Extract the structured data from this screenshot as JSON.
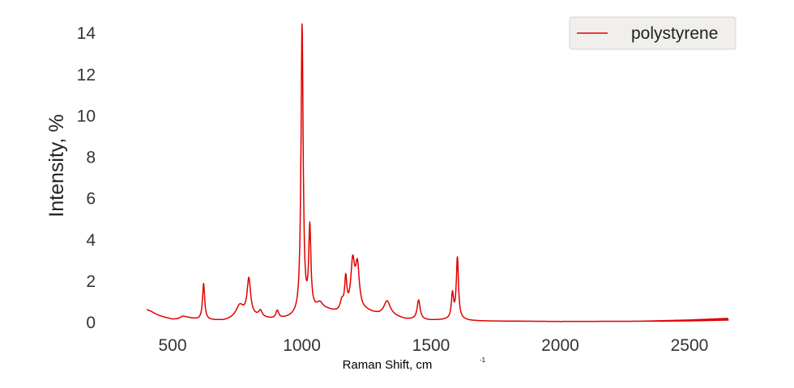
{
  "chart_data": {
    "type": "line",
    "title": "",
    "xlabel": "Raman Shift, cm",
    "xlabel_superscript": "-1",
    "ylabel": "Intensity, %",
    "xlim": [
      340,
      2660
    ],
    "ylim": [
      0,
      14.4
    ],
    "xticks": [
      500,
      1000,
      1500,
      2000,
      2500
    ],
    "yticks": [
      0,
      2,
      4,
      6,
      8,
      10,
      12,
      14
    ],
    "grid": false,
    "legend_position": "top-right",
    "series": [
      {
        "name": "polystyrene",
        "color": "#e00000",
        "peaks": [
          {
            "x": 620,
            "y": 1.75,
            "w": 5
          },
          {
            "x": 760,
            "y": 0.6,
            "w": 18
          },
          {
            "x": 795,
            "y": 1.75,
            "w": 8
          },
          {
            "x": 840,
            "y": 0.3,
            "w": 8
          },
          {
            "x": 905,
            "y": 0.4,
            "w": 7
          },
          {
            "x": 1001,
            "y": 14.0,
            "w": 5
          },
          {
            "x": 1031,
            "y": 4.0,
            "w": 5
          },
          {
            "x": 1070,
            "y": 0.35,
            "w": 15
          },
          {
            "x": 1155,
            "y": 0.5,
            "w": 8
          },
          {
            "x": 1170,
            "y": 1.5,
            "w": 5
          },
          {
            "x": 1197,
            "y": 2.3,
            "w": 9
          },
          {
            "x": 1215,
            "y": 2.1,
            "w": 9
          },
          {
            "x": 1330,
            "y": 0.7,
            "w": 15
          },
          {
            "x": 1452,
            "y": 0.95,
            "w": 7
          },
          {
            "x": 1583,
            "y": 1.2,
            "w": 5
          },
          {
            "x": 1602,
            "y": 2.95,
            "w": 5
          }
        ],
        "baseline": [
          [
            400,
            0.62
          ],
          [
            415,
            0.55
          ],
          [
            440,
            0.38
          ],
          [
            470,
            0.25
          ],
          [
            500,
            0.16
          ],
          [
            520,
            0.18
          ],
          [
            540,
            0.3
          ],
          [
            560,
            0.24
          ],
          [
            580,
            0.18
          ],
          [
            600,
            0.14
          ],
          [
            650,
            0.1
          ],
          [
            700,
            0.08
          ],
          [
            750,
            0.18
          ],
          [
            800,
            0.3
          ],
          [
            850,
            0.2
          ],
          [
            900,
            0.12
          ],
          [
            950,
            0.2
          ],
          [
            1000,
            0.3
          ],
          [
            1050,
            0.5
          ],
          [
            1100,
            0.55
          ],
          [
            1150,
            0.4
          ],
          [
            1250,
            0.5
          ],
          [
            1300,
            0.35
          ],
          [
            1350,
            0.3
          ],
          [
            1400,
            0.15
          ],
          [
            1450,
            0.12
          ],
          [
            1500,
            0.1
          ],
          [
            1550,
            0.12
          ],
          [
            1600,
            0.15
          ],
          [
            1650,
            0.09
          ],
          [
            1700,
            0.07
          ],
          [
            2000,
            0.05
          ],
          [
            2300,
            0.06
          ],
          [
            2500,
            0.1
          ],
          [
            2650,
            0.16
          ]
        ]
      }
    ]
  }
}
